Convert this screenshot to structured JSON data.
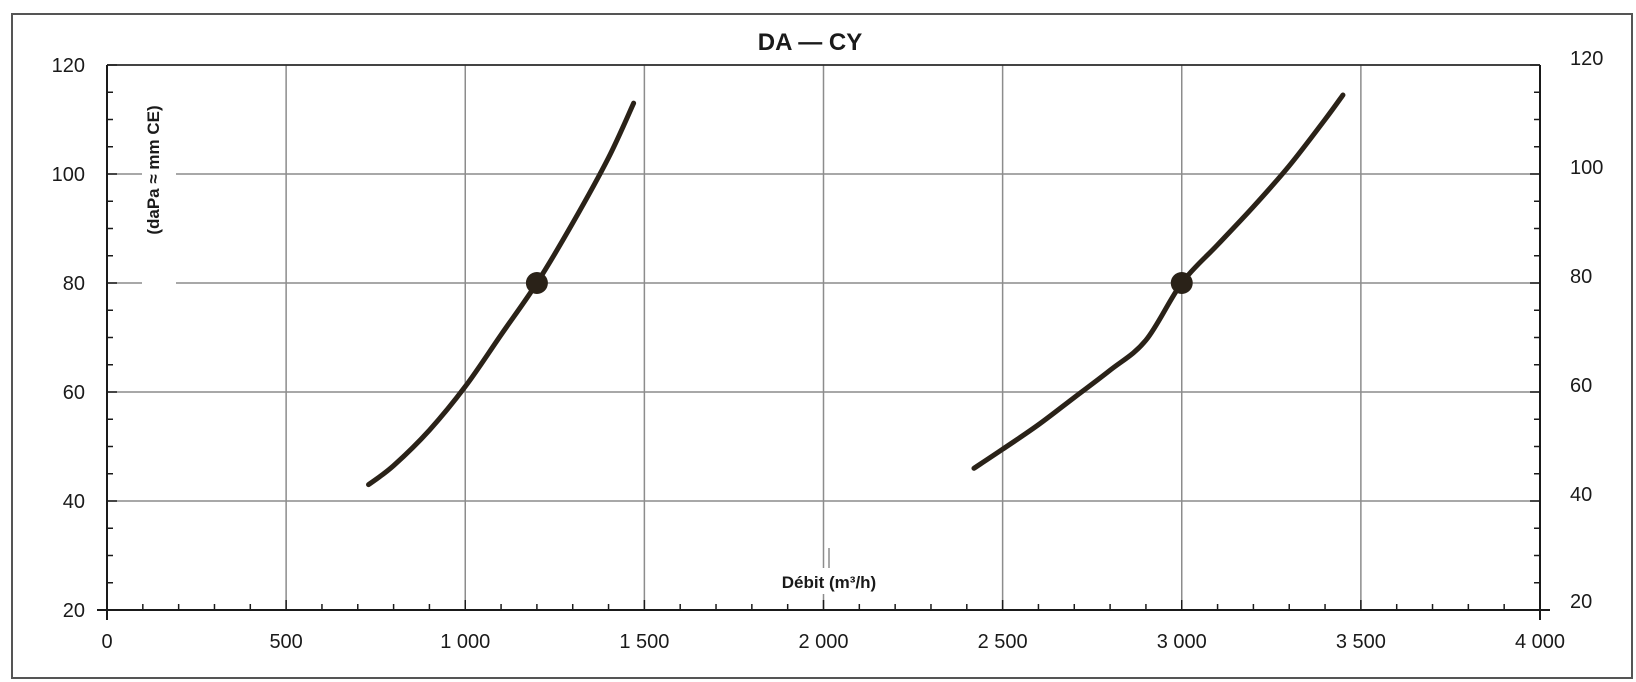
{
  "chart_data": {
    "type": "line",
    "title": "DA — CY",
    "ylabel": "(daPa ≈ mm CE)",
    "xlabel": "Débit (m³/h)",
    "xlim": [
      0,
      4000
    ],
    "ylim": [
      20,
      120
    ],
    "x_ticks": [
      0,
      500,
      1000,
      1500,
      2000,
      2500,
      3000,
      3500,
      4000
    ],
    "x_tick_labels": [
      "0",
      "500",
      "1 000",
      "1 500",
      "2 000",
      "2 500",
      "3 000",
      "3 500",
      "4 000"
    ],
    "y_ticks": [
      20,
      40,
      60,
      80,
      100,
      120
    ],
    "y_tick_labels": [
      "20",
      "40",
      "60",
      "80",
      "100",
      "120"
    ],
    "right_y_tick_labels": [
      "20",
      "40",
      "60",
      "80",
      "100",
      "120"
    ],
    "grid": true,
    "series": [
      {
        "x": [
          730,
          800,
          900,
          1000,
          1100,
          1200,
          1300,
          1400,
          1470
        ],
        "y": [
          43,
          46.5,
          53,
          61,
          70.5,
          80,
          91,
          103,
          113
        ],
        "marker": {
          "x": 1200,
          "y": 80
        }
      },
      {
        "x": [
          2420,
          2500,
          2600,
          2700,
          2800,
          2900,
          3000,
          3100,
          3200,
          3300,
          3400,
          3450
        ],
        "y": [
          46,
          49.5,
          54,
          59,
          64,
          69.5,
          80,
          87,
          94,
          101.5,
          110,
          114.5
        ],
        "marker": {
          "x": 3000,
          "y": 80
        }
      }
    ],
    "colors": {
      "curve": "#2a2218",
      "grid": "#8c8c8c",
      "axis": "#1a1a1a",
      "frame": "#555555"
    }
  }
}
